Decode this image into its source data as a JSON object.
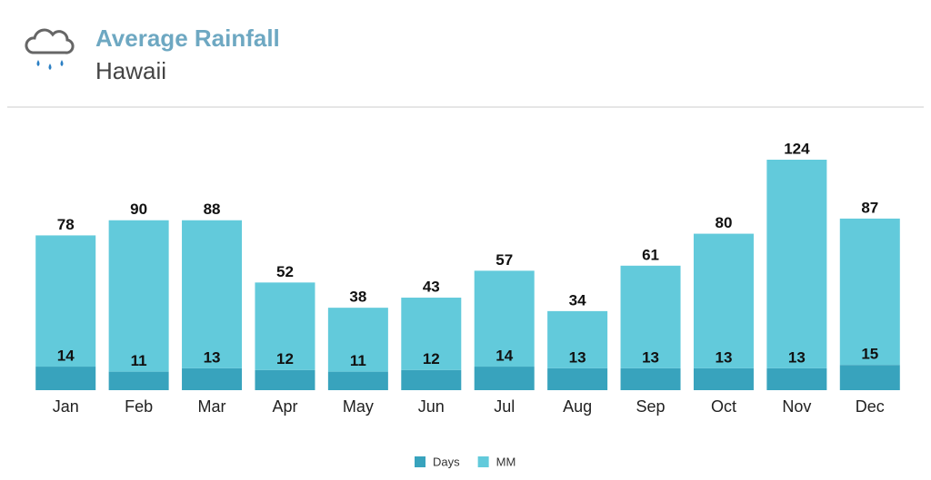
{
  "chart_data": {
    "type": "stacked_bar",
    "title": "Average Rainfall",
    "subtitle": "Hawaii",
    "categories": [
      "Jan",
      "Feb",
      "Mar",
      "Apr",
      "May",
      "Jun",
      "Jul",
      "Aug",
      "Sep",
      "Oct",
      "Nov",
      "Dec"
    ],
    "series": [
      {
        "name": "Days",
        "color": "#38a3bd",
        "values": [
          14,
          11,
          13,
          12,
          11,
          12,
          14,
          13,
          13,
          13,
          13,
          15
        ]
      },
      {
        "name": "MM",
        "color": "#62cadb",
        "values": [
          78,
          90,
          88,
          52,
          38,
          43,
          57,
          34,
          61,
          80,
          124,
          87
        ]
      }
    ],
    "legend": "bottom"
  }
}
